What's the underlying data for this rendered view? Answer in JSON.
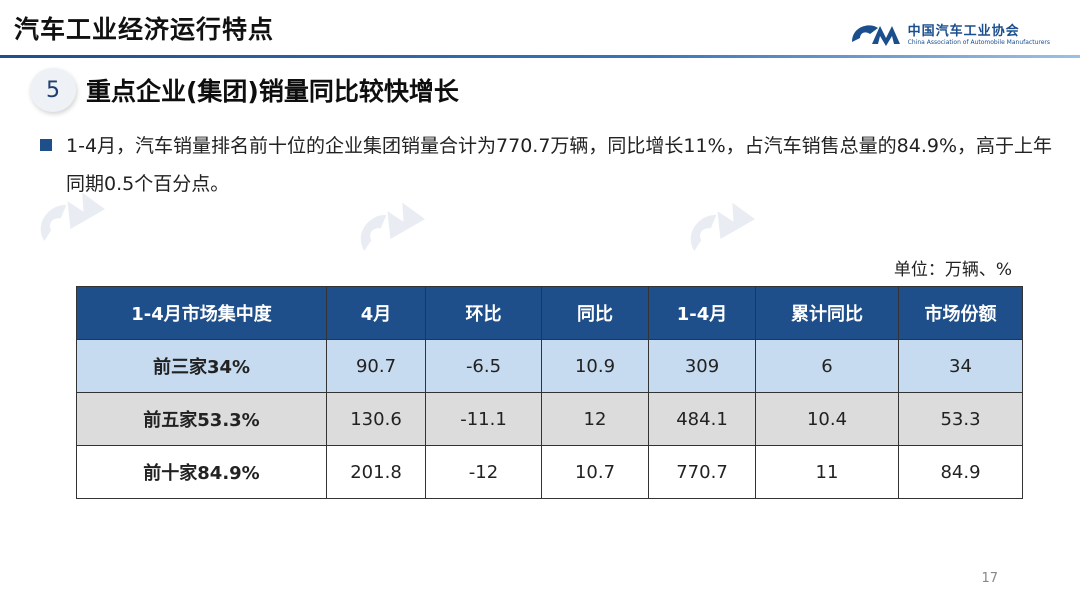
{
  "header": {
    "title": "汽车工业经济运行特点",
    "logo_cn": "中国汽车工业协会",
    "logo_en": "China Association of Automobile Manufacturers"
  },
  "section": {
    "number": "5",
    "title": "重点企业(集团)销量同比较快增长"
  },
  "bullet": "1-4月，汽车销量排名前十位的企业集团销量合计为770.7万辆，同比增长11%，占汽车销售总量的84.9%，高于上年同期0.5个百分点。",
  "unit": "单位：万辆、%",
  "table": {
    "headers": [
      "1-4月市场集中度",
      "4月",
      "环比",
      "同比",
      "1-4月",
      "累计同比",
      "市场份额"
    ],
    "rows": [
      [
        "前三家34%",
        "90.7",
        "-6.5",
        "10.9",
        "309",
        "6",
        "34"
      ],
      [
        "前五家53.3%",
        "130.6",
        "-11.1",
        "12",
        "484.1",
        "10.4",
        "53.3"
      ],
      [
        "前十家84.9%",
        "201.8",
        "-12",
        "10.7",
        "770.7",
        "11",
        "84.9"
      ]
    ]
  },
  "page_number": "17",
  "colors": {
    "accent": "#1f4f8b",
    "row1": "#c6daf0",
    "row2": "#dcdcdc"
  }
}
